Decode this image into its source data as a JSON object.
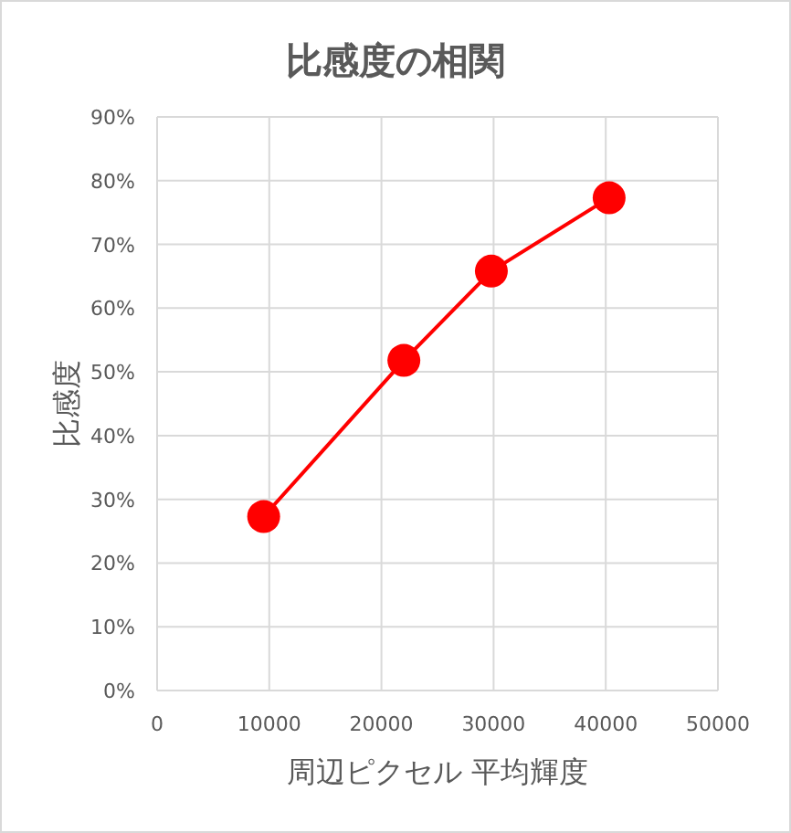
{
  "chart_data": {
    "type": "line",
    "title": "比感度の相関",
    "xlabel": "周辺ピクセル 平均輝度",
    "ylabel": "比感度",
    "x": [
      9500,
      22000,
      29800,
      40300
    ],
    "series": [
      {
        "color": "#ff0000",
        "values": [
          27.3,
          51.8,
          65.8,
          77.3
        ]
      }
    ],
    "xlim": [
      0,
      50000
    ],
    "xticks": [
      0,
      10000,
      20000,
      30000,
      40000,
      50000
    ],
    "ylim": [
      0,
      90
    ],
    "yticks": [
      {
        "value": 0,
        "label": "0%"
      },
      {
        "value": 10,
        "label": "10%"
      },
      {
        "value": 20,
        "label": "20%"
      },
      {
        "value": 30,
        "label": "30%"
      },
      {
        "value": 40,
        "label": "40%"
      },
      {
        "value": 50,
        "label": "50%"
      },
      {
        "value": 60,
        "label": "60%"
      },
      {
        "value": 70,
        "label": "70%"
      },
      {
        "value": 80,
        "label": "80%"
      },
      {
        "value": 90,
        "label": "90%"
      }
    ],
    "grid": true,
    "marker": "circle"
  }
}
